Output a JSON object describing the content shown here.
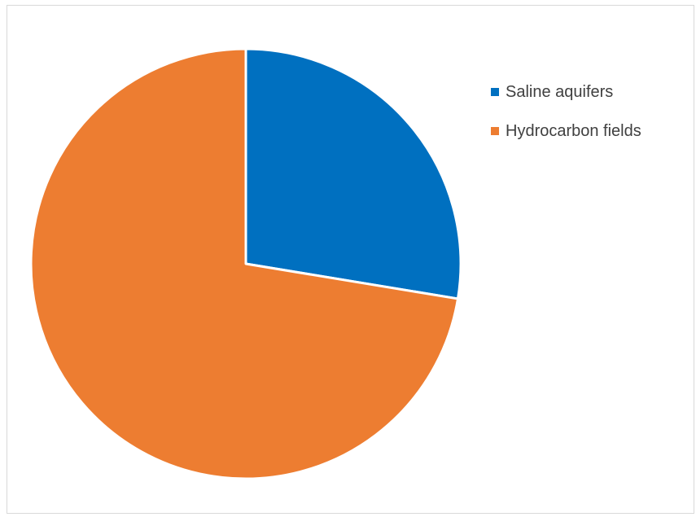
{
  "chart_data": {
    "type": "pie",
    "title": "",
    "categories": [
      "Saline aquifers",
      "Hydrocarbon fields"
    ],
    "values": [
      27.6,
      72.4
    ],
    "colors": [
      "#0070C0",
      "#ED7D31"
    ],
    "start_angle_deg": 0,
    "direction": "clockwise",
    "legend_position": "right",
    "data_labels": false
  }
}
